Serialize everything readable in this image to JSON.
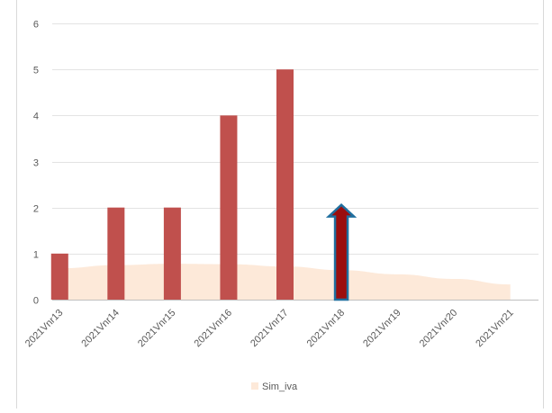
{
  "chart_data": {
    "type": "bar",
    "categories": [
      "2021Vnr13",
      "2021Vnr14",
      "2021Vnr15",
      "2021Vnr16",
      "2021Vnr17",
      "2021Vnr18",
      "2021Vnr19",
      "2021Vnr20",
      "2021Vnr21"
    ],
    "series": [
      {
        "type": "bar",
        "values": [
          1,
          2,
          2,
          4,
          5,
          null,
          null,
          null,
          null
        ],
        "color": "#c0504d"
      },
      {
        "type": "arrow",
        "values": [
          null,
          null,
          null,
          null,
          null,
          2,
          null,
          null,
          null
        ],
        "color": "#9b0e0e",
        "outline": "#1f6f9f"
      },
      {
        "name": "Sim_iva",
        "type": "area",
        "values": [
          0.68,
          0.75,
          0.78,
          0.77,
          0.72,
          0.64,
          0.55,
          0.45,
          0.33
        ],
        "color": "#fde9d9"
      }
    ],
    "yticks": [
      0,
      1,
      2,
      3,
      4,
      5,
      6
    ],
    "ylim": [
      0,
      6
    ],
    "grid": true,
    "legend": {
      "position": "bottom",
      "entries": [
        "Sim_iva"
      ]
    }
  }
}
